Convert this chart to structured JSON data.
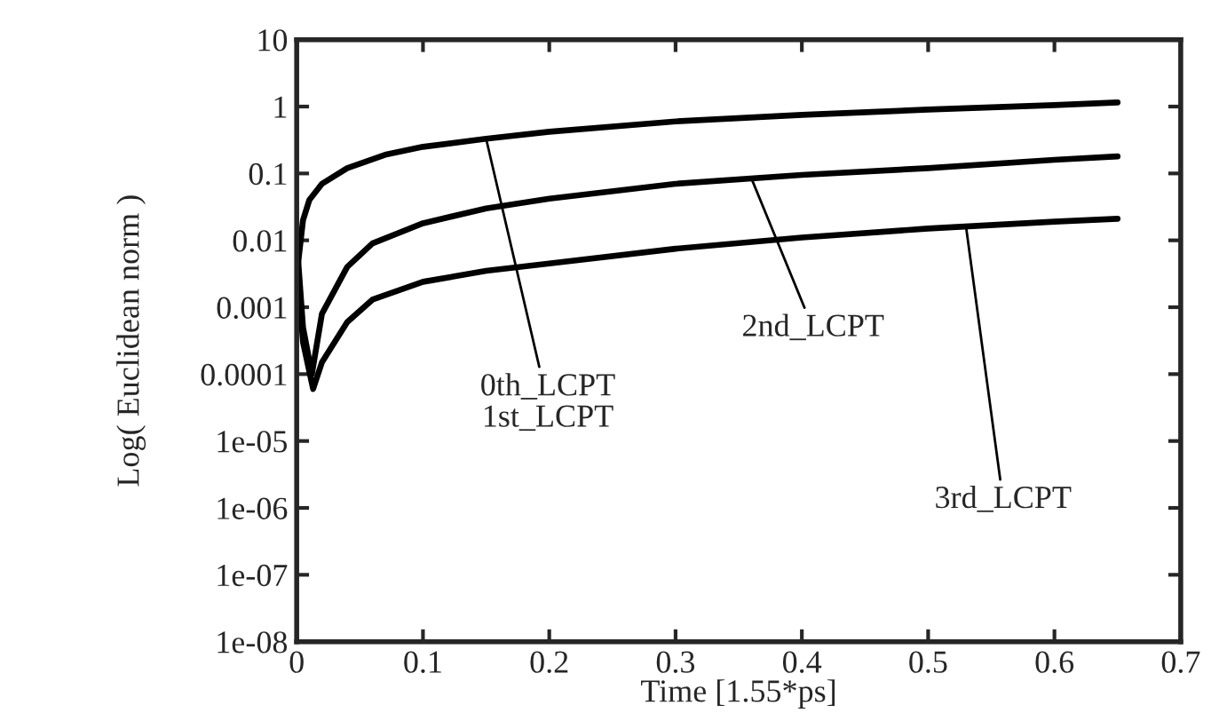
{
  "chart_data": {
    "type": "line",
    "xlabel": "Time [1.55*ps]",
    "ylabel": "Log( Euclidean norm )",
    "log": "y",
    "xlim": [
      0,
      0.7
    ],
    "xticks": [
      0,
      0.1,
      0.2,
      0.3,
      0.4,
      0.5,
      0.6,
      0.7
    ],
    "ylim": [
      1e-08,
      10
    ],
    "yticks": [
      10,
      1,
      0.1,
      0.01,
      0.001,
      0.0001,
      {
        "value": 1e-05,
        "label": "1e-05"
      },
      {
        "value": 1e-06,
        "label": "1e-06"
      },
      {
        "value": 1e-07,
        "label": "1e-07"
      },
      {
        "value": 1e-08,
        "label": "1e-08"
      }
    ],
    "grid": false,
    "marker": "none",
    "line_style": "solid",
    "series": [
      {
        "color": "#000000",
        "x": [
          0,
          0.005,
          0.01,
          0.02,
          0.04,
          0.07,
          0.1,
          0.15,
          0.2,
          0.3,
          0.4,
          0.5,
          0.6,
          0.65
        ],
        "values": [
          0.003,
          0.02,
          0.04,
          0.07,
          0.12,
          0.19,
          0.25,
          0.33,
          0.42,
          0.6,
          0.75,
          0.9,
          1.05,
          1.15
        ]
      },
      {
        "color": "#000000",
        "x": [
          0,
          0.005,
          0.012,
          0.02,
          0.04,
          0.06,
          0.1,
          0.15,
          0.2,
          0.3,
          0.4,
          0.5,
          0.6,
          0.65
        ],
        "values": [
          0.01,
          0.0005,
          0.0001,
          0.0008,
          0.004,
          0.009,
          0.018,
          0.03,
          0.042,
          0.07,
          0.095,
          0.12,
          0.16,
          0.18
        ]
      },
      {
        "color": "#000000",
        "x": [
          0,
          0.005,
          0.013,
          0.02,
          0.04,
          0.06,
          0.1,
          0.15,
          0.2,
          0.3,
          0.4,
          0.5,
          0.6,
          0.65
        ],
        "values": [
          0.005,
          0.0003,
          6e-05,
          0.00015,
          0.0006,
          0.0013,
          0.0024,
          0.0035,
          0.0045,
          0.0075,
          0.011,
          0.015,
          0.019,
          0.021
        ]
      }
    ],
    "annotations": [
      {
        "text": "0th_LCPT\n1st_LCPT",
        "x": 0.15,
        "y": 0.33
      },
      {
        "text": "2nd_LCPT",
        "x": 0.36,
        "y": 0.085
      },
      {
        "text": "3rd_LCPT",
        "x": 0.53,
        "y": 0.016
      }
    ]
  }
}
